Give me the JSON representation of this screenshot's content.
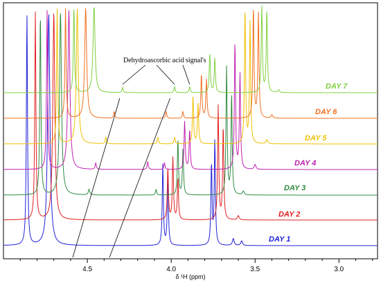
{
  "chart_data": {
    "type": "line",
    "xlabel": "δ ¹H (ppm)",
    "xlim": [
      5.0,
      2.77
    ],
    "x_reversed": true,
    "ticks": [
      {
        "v": 4.5,
        "label": "4.5"
      },
      {
        "v": 4.0,
        "label": "4.0"
      },
      {
        "v": 3.5,
        "label": "3.5"
      },
      {
        "v": 3.0,
        "label": "3.0"
      }
    ],
    "annotation": {
      "text": "Dehydroascorbic acid signal's",
      "targets": [
        4.29,
        3.98,
        3.89
      ]
    },
    "series": [
      {
        "name": "DAY 1",
        "color": "#2020d8",
        "label": "DAY 1",
        "peaks": [
          [
            4.86,
            1.0,
            0.004
          ],
          [
            4.73,
            1.0,
            0.008
          ],
          [
            4.05,
            0.35,
            0.004
          ],
          [
            4.02,
            0.3,
            0.004
          ],
          [
            3.76,
            0.35,
            0.004
          ],
          [
            3.74,
            0.45,
            0.004
          ],
          [
            3.63,
            0.03,
            0.006
          ],
          [
            3.58,
            0.02,
            0.006
          ]
        ]
      },
      {
        "name": "DAY 2",
        "color": "#e02020",
        "label": "DAY 2",
        "peaks": [
          [
            4.81,
            1.0,
            0.004
          ],
          [
            4.7,
            1.0,
            0.007
          ],
          [
            4.02,
            0.25,
            0.004
          ],
          [
            3.99,
            0.3,
            0.004
          ],
          [
            3.96,
            0.2,
            0.004
          ],
          [
            3.72,
            0.55,
            0.004
          ],
          [
            3.69,
            0.45,
            0.004
          ],
          [
            3.6,
            0.02,
            0.006
          ]
        ]
      },
      {
        "name": "DAY 3",
        "color": "#2e8b40",
        "label": "DAY 3",
        "peaks": [
          [
            4.78,
            1.0,
            0.004
          ],
          [
            4.66,
            1.0,
            0.007
          ],
          [
            4.49,
            0.03,
            0.005
          ],
          [
            4.09,
            0.03,
            0.004
          ],
          [
            3.96,
            0.3,
            0.004
          ],
          [
            3.93,
            0.25,
            0.004
          ],
          [
            3.67,
            0.7,
            0.004
          ],
          [
            3.64,
            0.55,
            0.004
          ],
          [
            3.57,
            0.02,
            0.006
          ]
        ]
      },
      {
        "name": "DAY 4",
        "color": "#c020b0",
        "label": "DAY 4",
        "peaks": [
          [
            4.74,
            1.0,
            0.004
          ],
          [
            4.61,
            1.0,
            0.007
          ],
          [
            4.45,
            0.04,
            0.004
          ],
          [
            4.14,
            0.05,
            0.004
          ],
          [
            4.04,
            0.04,
            0.004
          ],
          [
            3.92,
            0.3,
            0.004
          ],
          [
            3.89,
            0.25,
            0.004
          ],
          [
            3.62,
            0.8,
            0.004
          ],
          [
            3.59,
            0.6,
            0.004
          ],
          [
            3.5,
            0.03,
            0.006
          ]
        ]
      },
      {
        "name": "DAY 5",
        "color": "#f0c000",
        "label": "DAY 5",
        "peaks": [
          [
            4.68,
            1.0,
            0.004
          ],
          [
            4.56,
            1.0,
            0.007
          ],
          [
            4.39,
            0.05,
            0.004
          ],
          [
            4.08,
            0.05,
            0.004
          ],
          [
            3.98,
            0.05,
            0.004
          ],
          [
            3.87,
            0.35,
            0.004
          ],
          [
            3.84,
            0.3,
            0.004
          ],
          [
            3.56,
            1.0,
            0.004
          ],
          [
            3.53,
            0.9,
            0.004
          ],
          [
            3.43,
            0.03,
            0.006
          ]
        ]
      },
      {
        "name": "DAY 6",
        "color": "#f07020",
        "label": "DAY 6",
        "peaks": [
          [
            4.63,
            1.0,
            0.004
          ],
          [
            4.51,
            1.0,
            0.007
          ],
          [
            4.34,
            0.06,
            0.004
          ],
          [
            4.03,
            0.06,
            0.004
          ],
          [
            3.93,
            0.06,
            0.004
          ],
          [
            3.82,
            0.4,
            0.004
          ],
          [
            3.79,
            0.35,
            0.004
          ],
          [
            3.51,
            1.0,
            0.004
          ],
          [
            3.48,
            0.95,
            0.004
          ],
          [
            3.4,
            0.03,
            0.006
          ]
        ]
      },
      {
        "name": "DAY 7",
        "color": "#80d040",
        "label": "DAY 7",
        "peaks": [
          [
            4.58,
            1.0,
            0.004
          ],
          [
            4.46,
            1.0,
            0.007
          ],
          [
            4.29,
            0.06,
            0.004
          ],
          [
            3.98,
            0.07,
            0.004
          ],
          [
            3.89,
            0.07,
            0.004
          ],
          [
            3.77,
            0.45,
            0.004
          ],
          [
            3.74,
            0.4,
            0.004
          ],
          [
            3.46,
            1.0,
            0.004
          ],
          [
            3.43,
            0.95,
            0.004
          ],
          [
            3.36,
            0.03,
            0.006
          ]
        ]
      }
    ]
  }
}
